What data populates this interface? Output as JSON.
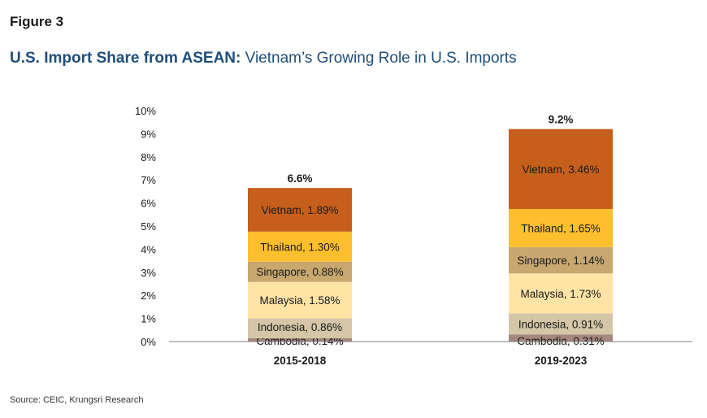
{
  "figure_label": "Figure 3",
  "title_bold": "U.S. Import Share from ASEAN:",
  "title_rest": " Vietnam’s Growing Role in U.S. Imports",
  "source": "Source: CEIC, Krungsri Research",
  "colors": {
    "Cambodia": "#a5877f",
    "Indonesia": "#d4c6a6",
    "Malaysia": "#ffe4a6",
    "Singapore": "#c8a86f",
    "Thailand": "#fdbf2d",
    "Vietnam": "#c65f1b",
    "title": "#1f4e79"
  },
  "chart_data": {
    "type": "bar",
    "stacked": true,
    "categories": [
      "2015-2018",
      "2019-2023"
    ],
    "series": [
      {
        "name": "Cambodia",
        "values": [
          0.14,
          0.31
        ],
        "labels": [
          "Cambodia, 0.14%",
          "Cambodia, 0.31%"
        ]
      },
      {
        "name": "Indonesia",
        "values": [
          0.86,
          0.91
        ],
        "labels": [
          "Indonesia, 0.86%",
          "Indonesia, 0.91%"
        ]
      },
      {
        "name": "Malaysia",
        "values": [
          1.58,
          1.73
        ],
        "labels": [
          "Malaysia, 1.58%",
          "Malaysia, 1.73%"
        ]
      },
      {
        "name": "Singapore",
        "values": [
          0.88,
          1.14
        ],
        "labels": [
          "Singapore, 0.88%",
          "Singapore, 1.14%"
        ]
      },
      {
        "name": "Thailand",
        "values": [
          1.3,
          1.65
        ],
        "labels": [
          "Thailand, 1.30%",
          "Thailand, 1.65%"
        ]
      },
      {
        "name": "Vietnam",
        "values": [
          1.89,
          3.46
        ],
        "labels": [
          "Vietnam, 1.89%",
          "Vietnam, 3.46%"
        ]
      }
    ],
    "totals": [
      "6.6%",
      "9.2%"
    ],
    "ylim": [
      0,
      10
    ],
    "yticks": [
      "0%",
      "1%",
      "2%",
      "3%",
      "4%",
      "5%",
      "6%",
      "7%",
      "8%",
      "9%",
      "10%"
    ],
    "grid": false,
    "legend": "none"
  }
}
